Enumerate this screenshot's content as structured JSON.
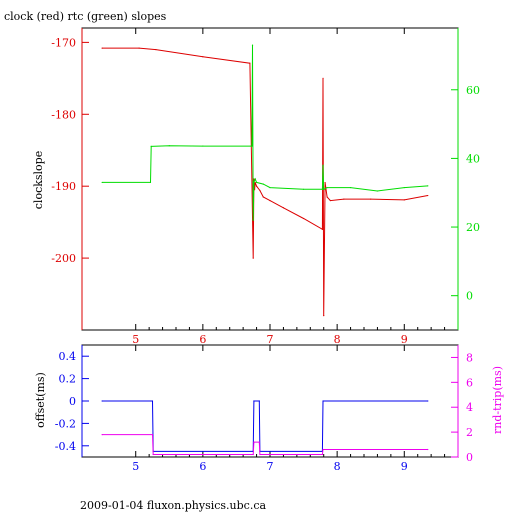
{
  "title": "clock (red) rtc (green) slopes",
  "footer": "2009-01-04 fluxon.physics.ubc.ca",
  "colors": {
    "red": "#dd0000",
    "green": "#00dd00",
    "blue": "#0000ee",
    "magenta": "#ee00ee",
    "axis_black": "#000000"
  },
  "chart_data": [
    {
      "type": "line",
      "ylabel": "clockslope",
      "y2label": "",
      "x_ticks": [
        "5",
        "6",
        "7",
        "8",
        "9"
      ],
      "y_ticks": [
        "-170",
        "-180",
        "-190",
        "-200"
      ],
      "y2_ticks": [
        "60",
        "40",
        "20",
        "0"
      ],
      "xlim": [
        4.2,
        9.8
      ],
      "ylim": [
        -210,
        -168
      ],
      "y2lim": [
        -10,
        78
      ],
      "series": [
        {
          "name": "clock",
          "color": "red",
          "axis": "left",
          "x": [
            4.5,
            5.05,
            5.3,
            6.0,
            6.7,
            6.75,
            6.76,
            6.77,
            6.78,
            6.8,
            6.85,
            6.9,
            7.0,
            7.2,
            7.5,
            7.78,
            7.79,
            7.8,
            7.82,
            7.85,
            7.9,
            8.1,
            8.5,
            9.0,
            9.35
          ],
          "y": [
            -170.8,
            -170.8,
            -171.0,
            -172.0,
            -172.9,
            -200.0,
            -189.0,
            -190.5,
            -189.5,
            -190.0,
            -190.6,
            -191.5,
            -192.0,
            -193.0,
            -194.5,
            -196.0,
            -175.0,
            -208.0,
            -189.5,
            -191.5,
            -192.0,
            -191.8,
            -191.8,
            -191.9,
            -191.3
          ]
        },
        {
          "name": "rtc",
          "color": "green",
          "axis": "right",
          "x": [
            4.5,
            5.22,
            5.23,
            5.5,
            6.0,
            6.73,
            6.74,
            6.75,
            6.76,
            6.78,
            6.8,
            6.9,
            7.0,
            7.5,
            7.78,
            7.79,
            7.8,
            7.85,
            8.2,
            8.6,
            9.0,
            9.35
          ],
          "y": [
            33.0,
            33.0,
            43.5,
            43.7,
            43.6,
            43.6,
            73.0,
            22.0,
            33.0,
            34.0,
            33.0,
            32.5,
            31.5,
            31.0,
            31.0,
            38.0,
            31.0,
            31.5,
            31.5,
            30.5,
            31.5,
            32.0
          ]
        }
      ]
    },
    {
      "type": "line",
      "ylabel": "offset(ms)",
      "y2label": "rnd-trip(ms)",
      "x_ticks": [
        "5",
        "6",
        "7",
        "8",
        "9"
      ],
      "y_ticks": [
        "0.4",
        "0.2",
        "0",
        "-0.2",
        "-0.4"
      ],
      "y2_ticks": [
        "8",
        "6",
        "4",
        "2",
        "0"
      ],
      "xlim": [
        4.2,
        9.8
      ],
      "ylim": [
        -0.5,
        0.5
      ],
      "y2lim": [
        0,
        9
      ],
      "series": [
        {
          "name": "offset",
          "color": "blue",
          "axis": "left",
          "x": [
            4.5,
            5.25,
            5.26,
            6.75,
            6.76,
            6.84,
            6.85,
            7.78,
            7.79,
            9.35
          ],
          "y": [
            0.0,
            0.0,
            -0.45,
            -0.45,
            0.0,
            0.0,
            -0.45,
            -0.45,
            0.0,
            0.0
          ]
        },
        {
          "name": "rnd-trip",
          "color": "magenta",
          "axis": "right",
          "x": [
            4.5,
            5.25,
            5.26,
            6.75,
            6.76,
            6.84,
            6.85,
            7.78,
            7.79,
            9.35
          ],
          "y": [
            1.8,
            1.8,
            0.2,
            0.2,
            1.2,
            1.2,
            0.2,
            0.2,
            0.6,
            0.6
          ]
        }
      ]
    }
  ]
}
